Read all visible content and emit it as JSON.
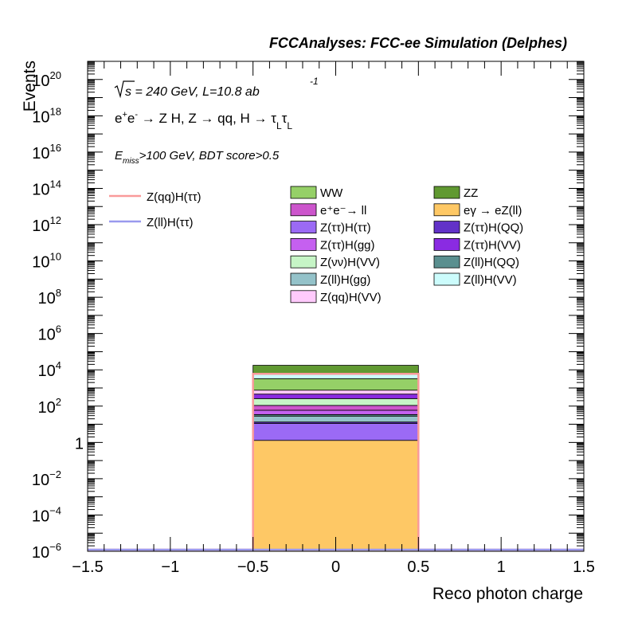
{
  "chart_data": {
    "type": "bar",
    "header": "FCCAnalyses: FCC-ee Simulation (Delphes)",
    "xlabel": "Reco photon charge",
    "ylabel": "Events",
    "xlim": [
      -1.5,
      1.5
    ],
    "ylog": true,
    "ylim_exp": [
      -6,
      21
    ],
    "x_ticks": [
      "−1.5",
      "−1",
      "−0.5",
      "0",
      "0.5",
      "1",
      "1.5"
    ],
    "y_ticks": [
      {
        "base": "10",
        "exp": "20",
        "e": 20
      },
      {
        "base": "10",
        "exp": "18",
        "e": 18
      },
      {
        "base": "10",
        "exp": "16",
        "e": 16
      },
      {
        "base": "10",
        "exp": "14",
        "e": 14
      },
      {
        "base": "10",
        "exp": "12",
        "e": 12
      },
      {
        "base": "10",
        "exp": "10",
        "e": 10
      },
      {
        "base": "10",
        "exp": "8",
        "e": 8
      },
      {
        "base": "10",
        "exp": "6",
        "e": 6
      },
      {
        "base": "10",
        "exp": "4",
        "e": 4
      },
      {
        "base": "10",
        "exp": "2",
        "e": 2
      },
      {
        "base": "1",
        "exp": "",
        "e": 0
      },
      {
        "base": "10",
        "exp": "−2",
        "e": -2
      },
      {
        "base": "10",
        "exp": "−4",
        "e": -4
      },
      {
        "base": "10",
        "exp": "−6",
        "e": -6
      }
    ],
    "bin": [
      -0.5,
      0.5
    ],
    "annotations": {
      "sqrts": "s",
      "energy": " = 240 GeV, L=10.8 ab",
      "energy_sup": "-1",
      "process_a": "e",
      "process_a_sup": "+",
      "process_b": "e",
      "process_b_sup": "-",
      "process_rest": " → Z H, Z  → qq, H  →  τ",
      "process_sub1": "L",
      "process_tau2": "τ",
      "process_sub2": "L",
      "cut_e": "E",
      "cut_sub": "miss",
      "cut_rest": ">100 GeV, BDT score>0.5"
    },
    "stack": [
      {
        "name": "eγ → eZ(ll)",
        "value": 1.3,
        "color": "#fec865"
      },
      {
        "name": "Z(ττ)H(ττ)",
        "value": 10,
        "color": "#9b6af5"
      },
      {
        "name": "Z(ττ)H(QQ)",
        "value": 2,
        "color": "#6232c8"
      },
      {
        "name": "Z(ll)H(gg)",
        "value": 15,
        "color": "#94c2c9"
      },
      {
        "name": "Z(ll)H(QQ)",
        "value": 6,
        "color": "#5a8f8f"
      },
      {
        "name": "Z(ττ)H(gg)",
        "value": 25,
        "color": "#c560f0"
      },
      {
        "name": "e⁺e⁻→ ll",
        "value": 50,
        "color": "#cc55cc"
      },
      {
        "name": "Z(νν)H(VV)",
        "value": 150,
        "color": "#c6f5c6"
      },
      {
        "name": "Z(ττ)H(VV)",
        "value": 200,
        "color": "#8a2be2"
      },
      {
        "name": "Z(qq)H(VV)",
        "value": 300,
        "color": "#ffcafc"
      },
      {
        "name": "WW",
        "value": 2500,
        "color": "#95d067"
      },
      {
        "name": "Z(ll)H(VV)",
        "value": 2500,
        "color": "#ccfcfc"
      },
      {
        "name": "ZZ",
        "value": 12000,
        "color": "#609931"
      }
    ],
    "signals": [
      {
        "name": "Z(qq)H(ττ)",
        "value": 6000,
        "color": "#f99a9a"
      },
      {
        "name": "Z(ll)H(ττ)",
        "value": 1e-06,
        "color": "#9a9aee"
      }
    ],
    "legend_boxes": [
      {
        "label": "WW",
        "color": "#95d067"
      },
      {
        "label": "ZZ",
        "color": "#609931"
      },
      {
        "label": "e⁺e⁻→ ll",
        "color": "#cc55cc"
      },
      {
        "label": "eγ → eZ(ll)",
        "color": "#fec865"
      },
      {
        "label": "Z(ττ)H(ττ)",
        "color": "#9b6af5"
      },
      {
        "label": "Z(ττ)H(QQ)",
        "color": "#6232c8"
      },
      {
        "label": "Z(ττ)H(gg)",
        "color": "#c560f0"
      },
      {
        "label": "Z(ττ)H(VV)",
        "color": "#8a2be2"
      },
      {
        "label": "Z(νν)H(VV)",
        "color": "#c6f5c6"
      },
      {
        "label": "Z(ll)H(QQ)",
        "color": "#5a8f8f"
      },
      {
        "label": "Z(ll)H(gg)",
        "color": "#94c2c9"
      },
      {
        "label": "Z(ll)H(VV)",
        "color": "#ccfcfc"
      },
      {
        "label": "Z(qq)H(VV)",
        "color": "#ffcafc"
      }
    ],
    "legend_lines": [
      {
        "label": "Z(qq)H(ττ)",
        "color": "#f99a9a"
      },
      {
        "label": "Z(ll)H(ττ)",
        "color": "#9a9aee"
      }
    ]
  }
}
